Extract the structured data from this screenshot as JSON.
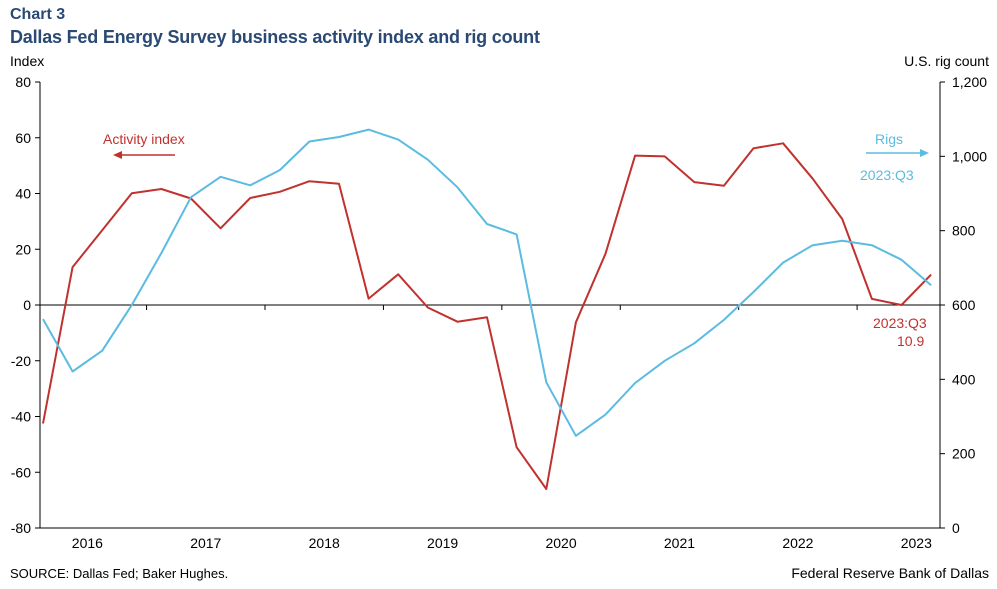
{
  "header": {
    "chart_number": "Chart 3",
    "title": "Dallas Fed Energy Survey business activity index and rig count"
  },
  "footer": {
    "source": "SOURCE: Dallas Fed; Baker Hughes.",
    "credit": "Federal Reserve Bank of Dallas"
  },
  "colors": {
    "activity": "#c0322f",
    "rigs": "#5bbbe0",
    "axis": "#000000"
  },
  "chart_data": {
    "type": "line",
    "title": "Dallas Fed Energy Survey business activity index and rig count",
    "ylabel_left": "Index",
    "ylabel_right": "U.S. rig count",
    "ylim_left": [
      -80,
      80
    ],
    "ylim_right": [
      0,
      1200
    ],
    "yticks_left": [
      "80",
      "60",
      "40",
      "20",
      "0",
      "-20",
      "-40",
      "-60",
      "-80"
    ],
    "yticks_right": [
      "1,200",
      "1,000",
      "800",
      "600",
      "400",
      "200",
      "0"
    ],
    "xlim": [
      2015.6,
      2023.2
    ],
    "xticks": [
      "2016",
      "2017",
      "2018",
      "2019",
      "2020",
      "2021",
      "2022",
      "2023"
    ],
    "series": [
      {
        "name": "Activity index",
        "axis": "left",
        "x": [
          2015.625,
          2015.875,
          2016.125,
          2016.375,
          2016.625,
          2016.875,
          2017.125,
          2017.375,
          2017.625,
          2017.875,
          2018.125,
          2018.375,
          2018.625,
          2018.875,
          2019.125,
          2019.375,
          2019.625,
          2019.875,
          2020.125,
          2020.375,
          2020.625,
          2020.875,
          2021.125,
          2021.375,
          2021.625,
          2021.875,
          2022.125,
          2022.375,
          2022.625,
          2022.875,
          2023.125
        ],
        "values": [
          -42.5,
          13.6,
          26.8,
          40.1,
          41.6,
          38.2,
          27.5,
          38.4,
          40.6,
          44.4,
          43.5,
          2.3,
          11,
          -0.9,
          -6,
          -4.4,
          -51,
          -66,
          -6.2,
          18.4,
          53.6,
          53.3,
          44.1,
          42.8,
          56.2,
          58,
          45.3,
          30.8,
          2.2,
          0,
          10.9
        ]
      },
      {
        "name": "Rigs",
        "axis": "right",
        "x": [
          2015.625,
          2015.875,
          2016.125,
          2016.375,
          2016.625,
          2016.875,
          2017.125,
          2017.375,
          2017.625,
          2017.875,
          2018.125,
          2018.375,
          2018.625,
          2018.875,
          2019.125,
          2019.375,
          2019.625,
          2019.875,
          2020.125,
          2020.375,
          2020.625,
          2020.875,
          2021.125,
          2021.375,
          2021.625,
          2021.875,
          2022.125,
          2022.375,
          2022.625,
          2022.875,
          2023.125
        ],
        "values": [
          562,
          421,
          477,
          600,
          740,
          890,
          945,
          922,
          963,
          1040,
          1052,
          1072,
          1045,
          991,
          917,
          818,
          790,
          392,
          248,
          305,
          390,
          450,
          497,
          560,
          635,
          714,
          761,
          773,
          761,
          722,
          653
        ]
      }
    ],
    "legend": {
      "activity": "Activity index",
      "rigs": "Rigs"
    },
    "annotations": {
      "rigs_latest": "2023:Q3",
      "activity_latest_period": "2023:Q3",
      "activity_latest_value": "10.9"
    }
  }
}
